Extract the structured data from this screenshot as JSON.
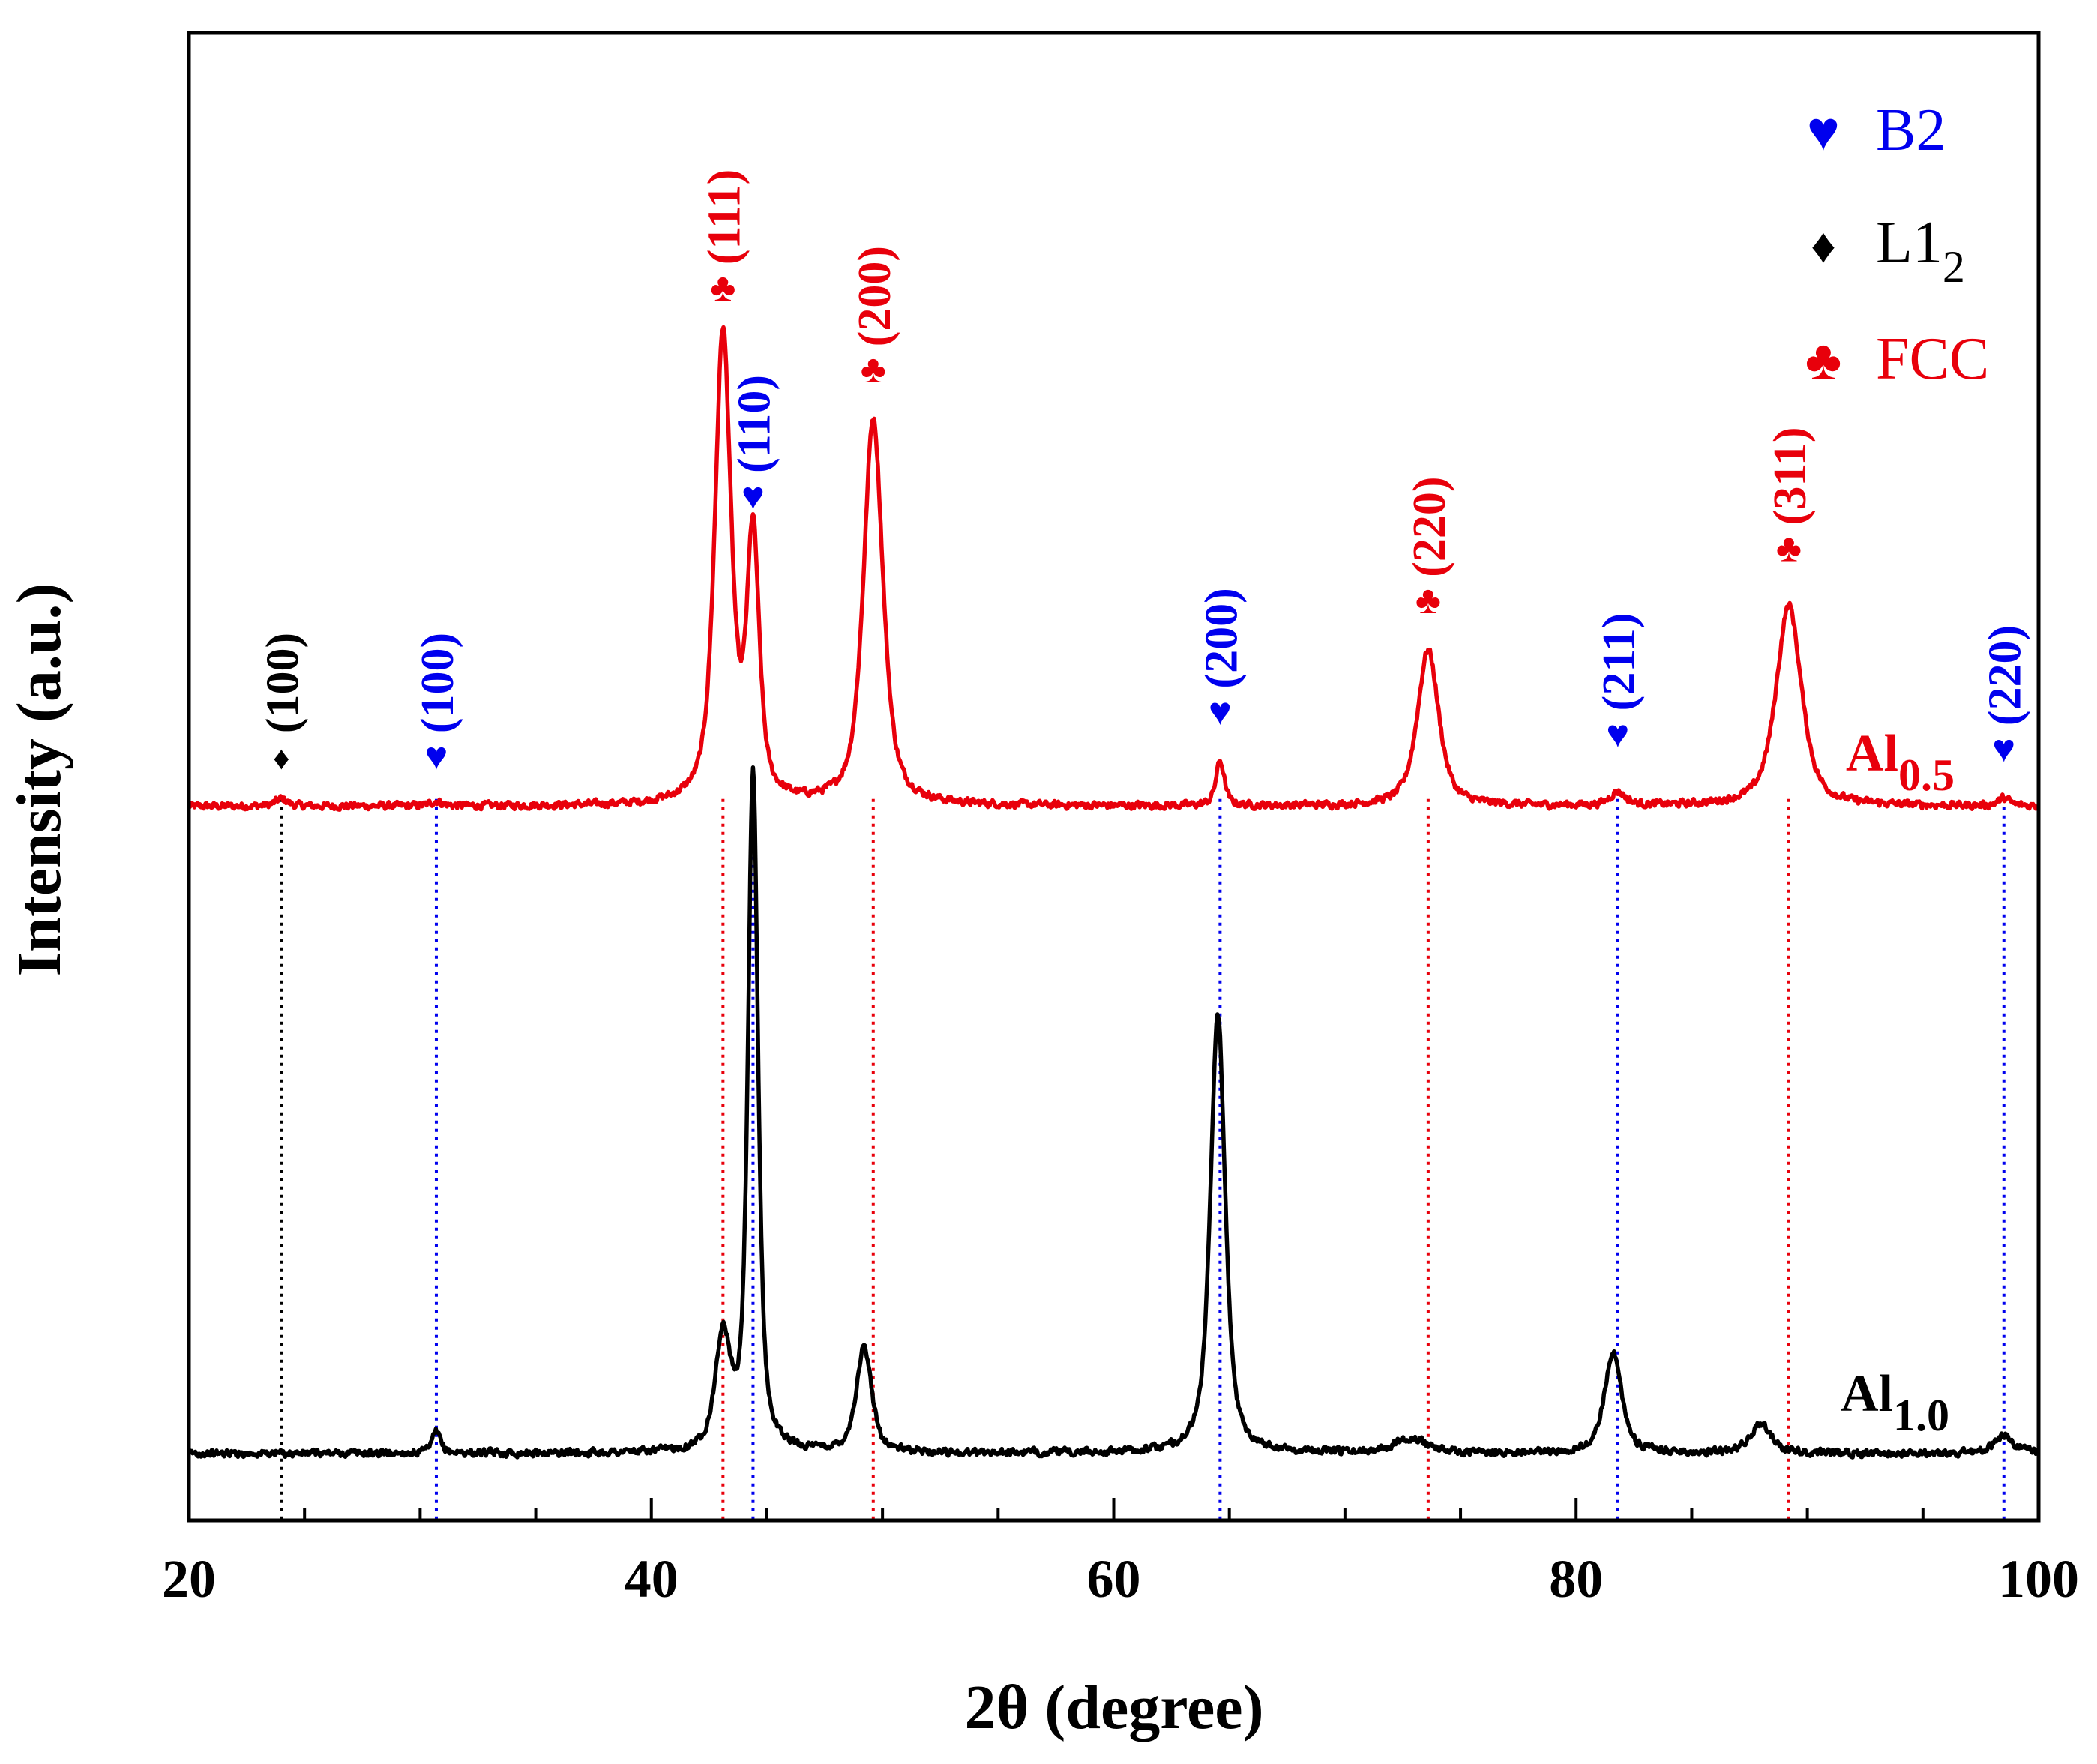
{
  "chart_data": {
    "type": "line",
    "title": "",
    "xlabel": "2θ (degree)",
    "ylabel": "Intensity (a.u.)",
    "xlim": [
      20,
      100
    ],
    "ylim": [
      0,
      100
    ],
    "x_ticks": [
      20,
      40,
      60,
      80,
      100
    ],
    "x_tick_labels": [
      "20",
      "40",
      "60",
      "80",
      "100"
    ],
    "colors": {
      "fcc": "#e8000b",
      "b2": "#0000ee",
      "l12": "#000000",
      "al10": "#000000",
      "al05": "#e8000b"
    },
    "legend": {
      "position": "top-right",
      "entries": [
        {
          "symbol": "♥",
          "label": "B2",
          "color": "#0000ee"
        },
        {
          "symbol": "♦",
          "label": "L1",
          "sub": "2",
          "color": "#000000"
        },
        {
          "symbol": "♣",
          "label": "FCC",
          "color": "#e8000b"
        }
      ]
    },
    "series": [
      {
        "name": "Al0.5",
        "label": "Al",
        "sub": "0.5",
        "color": "#e8000b",
        "baseline": 48,
        "noise": 0.35,
        "peaks": [
          {
            "x": 24.0,
            "h": 0.5,
            "w": 0.3
          },
          {
            "x": 30.7,
            "h": 0.3,
            "w": 0.3
          },
          {
            "x": 43.1,
            "h": 31.5,
            "w": 0.42
          },
          {
            "x": 44.4,
            "h": 17.5,
            "w": 0.32
          },
          {
            "x": 49.6,
            "h": 26.0,
            "w": 0.5
          },
          {
            "x": 64.6,
            "h": 3.0,
            "w": 0.22
          },
          {
            "x": 73.6,
            "h": 10.5,
            "w": 0.55
          },
          {
            "x": 81.8,
            "h": 0.9,
            "w": 0.4
          },
          {
            "x": 89.2,
            "h": 13.5,
            "w": 0.65
          },
          {
            "x": 98.5,
            "h": 0.5,
            "w": 0.3
          }
        ]
      },
      {
        "name": "Al1.0",
        "label": "Al",
        "sub": "1.0",
        "color": "#000000",
        "baseline": 4.5,
        "noise": 0.35,
        "peaks": [
          {
            "x": 30.7,
            "h": 1.4,
            "w": 0.22
          },
          {
            "x": 43.1,
            "h": 7.5,
            "w": 0.4
          },
          {
            "x": 44.4,
            "h": 45.5,
            "w": 0.26
          },
          {
            "x": 49.2,
            "h": 7.0,
            "w": 0.4
          },
          {
            "x": 64.5,
            "h": 29.5,
            "w": 0.38
          },
          {
            "x": 72.8,
            "h": 1.0,
            "w": 0.9
          },
          {
            "x": 81.6,
            "h": 6.8,
            "w": 0.45
          },
          {
            "x": 88.0,
            "h": 1.9,
            "w": 0.55
          },
          {
            "x": 98.5,
            "h": 1.2,
            "w": 0.5
          }
        ]
      }
    ],
    "reference_lines": [
      {
        "x": 24.0,
        "color": "#000000"
      },
      {
        "x": 30.7,
        "color": "#0000ee"
      },
      {
        "x": 43.1,
        "color": "#e8000b"
      },
      {
        "x": 44.4,
        "color": "#0000ee"
      },
      {
        "x": 49.6,
        "color": "#e8000b"
      },
      {
        "x": 64.6,
        "color": "#0000ee"
      },
      {
        "x": 73.6,
        "color": "#e8000b"
      },
      {
        "x": 81.8,
        "color": "#0000ee"
      },
      {
        "x": 89.2,
        "color": "#e8000b"
      },
      {
        "x": 98.5,
        "color": "#0000ee"
      }
    ],
    "annotations": [
      {
        "x": 24.0,
        "y": 50.5,
        "symbol": "♦",
        "label": "(100)",
        "color": "#000000"
      },
      {
        "x": 30.7,
        "y": 50.5,
        "symbol": "♥",
        "label": "(100)",
        "color": "#0000ee"
      },
      {
        "x": 43.1,
        "y": 82.0,
        "symbol": "♣",
        "label": "(111)",
        "color": "#e8000b"
      },
      {
        "x": 44.4,
        "y": 68.0,
        "symbol": "♥",
        "label": "(110)",
        "color": "#0000ee"
      },
      {
        "x": 49.6,
        "y": 76.5,
        "symbol": "♣",
        "label": "(200)",
        "color": "#e8000b"
      },
      {
        "x": 64.6,
        "y": 53.5,
        "symbol": "♥",
        "label": "(200)",
        "color": "#0000ee"
      },
      {
        "x": 73.6,
        "y": 61.0,
        "symbol": "♣",
        "label": "(220)",
        "color": "#e8000b"
      },
      {
        "x": 81.8,
        "y": 52.0,
        "symbol": "♥",
        "label": "(211)",
        "color": "#0000ee"
      },
      {
        "x": 89.2,
        "y": 64.5,
        "symbol": "♣",
        "label": "(311)",
        "color": "#e8000b"
      },
      {
        "x": 98.5,
        "y": 51.0,
        "symbol": "♥",
        "label": "(220)",
        "color": "#0000ee"
      }
    ]
  }
}
